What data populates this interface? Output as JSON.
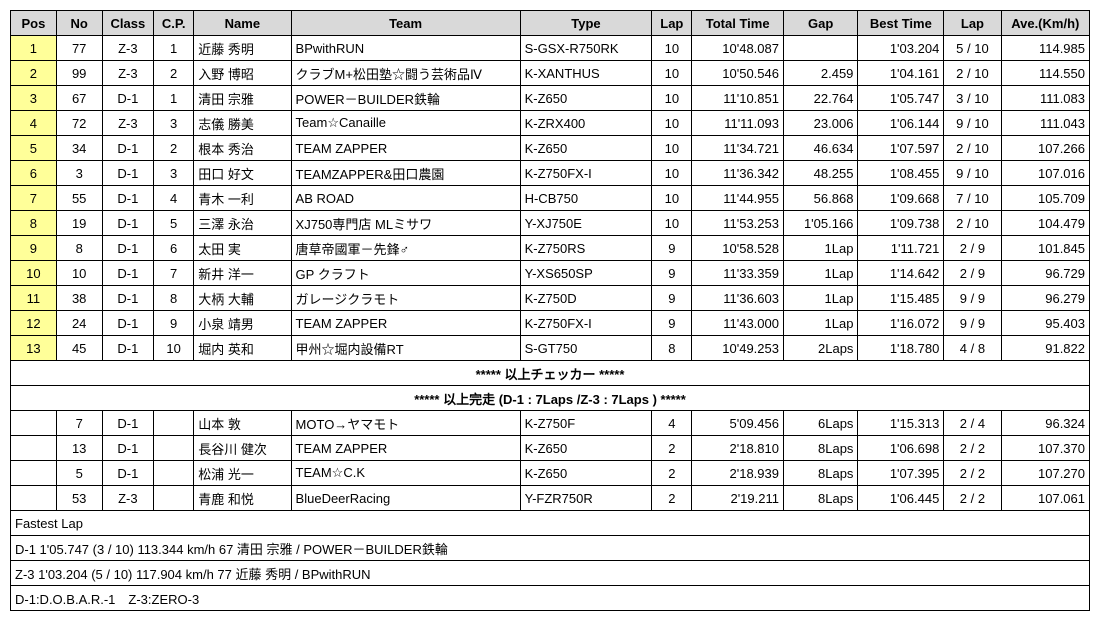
{
  "headers": [
    "Pos",
    "No",
    "Class",
    "C.P.",
    "Name",
    "Team",
    "Type",
    "Lap",
    "Total Time",
    "Gap",
    "Best Time",
    "Lap",
    "Ave.(Km/h)"
  ],
  "rows": [
    {
      "pos": "1",
      "no": "77",
      "class": "Z-3",
      "cp": "1",
      "name": "近藤 秀明",
      "team": "BPwithRUN",
      "type": "S-GSX-R750RK",
      "lap": "10",
      "total": "10'48.087",
      "gap": "",
      "best": "1'03.204",
      "lap2": "5 / 10",
      "ave": "114.985"
    },
    {
      "pos": "2",
      "no": "99",
      "class": "Z-3",
      "cp": "2",
      "name": "入野 博昭",
      "team": "クラブM+松田塾☆闘う芸術品Ⅳ",
      "type": "K-XANTHUS",
      "lap": "10",
      "total": "10'50.546",
      "gap": "2.459",
      "best": "1'04.161",
      "lap2": "2 / 10",
      "ave": "114.550"
    },
    {
      "pos": "3",
      "no": "67",
      "class": "D-1",
      "cp": "1",
      "name": "清田 宗雅",
      "team": "POWER－BUILDER鉄輪",
      "type": "K-Z650",
      "lap": "10",
      "total": "11'10.851",
      "gap": "22.764",
      "best": "1'05.747",
      "lap2": "3 / 10",
      "ave": "111.083"
    },
    {
      "pos": "4",
      "no": "72",
      "class": "Z-3",
      "cp": "3",
      "name": "志儀 勝美",
      "team": "Team☆Canaille",
      "type": "K-ZRX400",
      "lap": "10",
      "total": "11'11.093",
      "gap": "23.006",
      "best": "1'06.144",
      "lap2": "9 / 10",
      "ave": "111.043"
    },
    {
      "pos": "5",
      "no": "34",
      "class": "D-1",
      "cp": "2",
      "name": "根本 秀治",
      "team": "TEAM ZAPPER",
      "type": "K-Z650",
      "lap": "10",
      "total": "11'34.721",
      "gap": "46.634",
      "best": "1'07.597",
      "lap2": "2 / 10",
      "ave": "107.266"
    },
    {
      "pos": "6",
      "no": "3",
      "class": "D-1",
      "cp": "3",
      "name": "田口 好文",
      "team": "TEAMZAPPER&田口農園",
      "type": "K-Z750FX-I",
      "lap": "10",
      "total": "11'36.342",
      "gap": "48.255",
      "best": "1'08.455",
      "lap2": "9 / 10",
      "ave": "107.016"
    },
    {
      "pos": "7",
      "no": "55",
      "class": "D-1",
      "cp": "4",
      "name": "青木 一利",
      "team": "AB ROAD",
      "type": "H-CB750",
      "lap": "10",
      "total": "11'44.955",
      "gap": "56.868",
      "best": "1'09.668",
      "lap2": "7 / 10",
      "ave": "105.709"
    },
    {
      "pos": "8",
      "no": "19",
      "class": "D-1",
      "cp": "5",
      "name": "三澤 永治",
      "team": "XJ750専門店 MLミサワ",
      "type": "Y-XJ750E",
      "lap": "10",
      "total": "11'53.253",
      "gap": "1'05.166",
      "best": "1'09.738",
      "lap2": "2 / 10",
      "ave": "104.479"
    },
    {
      "pos": "9",
      "no": "8",
      "class": "D-1",
      "cp": "6",
      "name": "太田 実",
      "team": "唐草帝國軍－先鋒♂",
      "type": "K-Z750RS",
      "lap": "9",
      "total": "10'58.528",
      "gap": "1Lap",
      "best": "1'11.721",
      "lap2": "2 / 9",
      "ave": "101.845"
    },
    {
      "pos": "10",
      "no": "10",
      "class": "D-1",
      "cp": "7",
      "name": "新井 洋一",
      "team": "GP クラフト",
      "type": "Y-XS650SP",
      "lap": "9",
      "total": "11'33.359",
      "gap": "1Lap",
      "best": "1'14.642",
      "lap2": "2 / 9",
      "ave": "96.729"
    },
    {
      "pos": "11",
      "no": "38",
      "class": "D-1",
      "cp": "8",
      "name": "大柄 大輔",
      "team": "ガレージクラモト",
      "type": "K-Z750D",
      "lap": "9",
      "total": "11'36.603",
      "gap": "1Lap",
      "best": "1'15.485",
      "lap2": "9 / 9",
      "ave": "96.279"
    },
    {
      "pos": "12",
      "no": "24",
      "class": "D-1",
      "cp": "9",
      "name": "小泉 靖男",
      "team": "TEAM ZAPPER",
      "type": "K-Z750FX-I",
      "lap": "9",
      "total": "11'43.000",
      "gap": "1Lap",
      "best": "1'16.072",
      "lap2": "9 / 9",
      "ave": "95.403"
    },
    {
      "pos": "13",
      "no": "45",
      "class": "D-1",
      "cp": "10",
      "name": "堀内 英和",
      "team": "甲州☆堀内設備RT",
      "type": "S-GT750",
      "lap": "8",
      "total": "10'49.253",
      "gap": "2Laps",
      "best": "1'18.780",
      "lap2": "4 / 8",
      "ave": "91.822"
    }
  ],
  "sep1": "***** 以上チェッカー *****",
  "sep2": "***** 以上完走 (D-1 : 7Laps /Z-3 : 7Laps ) *****",
  "dnf": [
    {
      "no": "7",
      "class": "D-1",
      "name": "山本 敦",
      "team": "MOTO→ヤマモト",
      "type": "K-Z750F",
      "lap": "4",
      "total": "5'09.456",
      "gap": "6Laps",
      "best": "1'15.313",
      "lap2": "2 / 4",
      "ave": "96.324"
    },
    {
      "no": "13",
      "class": "D-1",
      "name": "長谷川 健次",
      "team": "TEAM ZAPPER",
      "type": "K-Z650",
      "lap": "2",
      "total": "2'18.810",
      "gap": "8Laps",
      "best": "1'06.698",
      "lap2": "2 / 2",
      "ave": "107.370"
    },
    {
      "no": "5",
      "class": "D-1",
      "name": "松浦 光一",
      "team": "TEAM☆C.K",
      "type": "K-Z650",
      "lap": "2",
      "total": "2'18.939",
      "gap": "8Laps",
      "best": "1'07.395",
      "lap2": "2 / 2",
      "ave": "107.270"
    },
    {
      "no": "53",
      "class": "Z-3",
      "name": "青鹿 和悦",
      "team": "BlueDeerRacing",
      "type": "Y-FZR750R",
      "lap": "2",
      "total": "2'19.211",
      "gap": "8Laps",
      "best": "1'06.445",
      "lap2": "2 / 2",
      "ave": "107.061"
    }
  ],
  "footer": {
    "title": "Fastest Lap",
    "l1": "D-1 1'05.747 (3 / 10) 113.344 km/h 67 清田 宗雅 / POWER－BUILDER鉄輪",
    "l2": "Z-3 1'03.204 (5 / 10) 117.904 km/h 77 近藤 秀明 / BPwithRUN",
    "l3": "D-1:D.O.B.A.R.-1　Z-3:ZERO-3"
  }
}
